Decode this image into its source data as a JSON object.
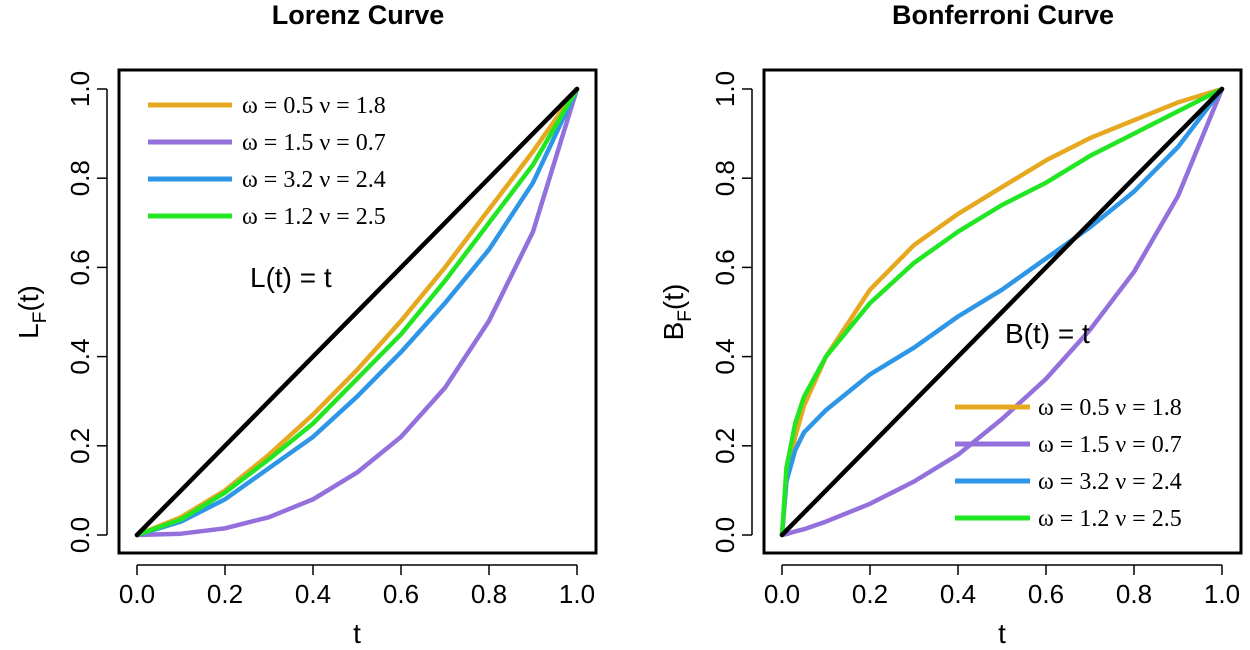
{
  "chart_data": [
    {
      "type": "line",
      "title": "Lorenz Curve",
      "xlabel": "t",
      "ylabel_main": "L",
      "ylabel_sub": "F",
      "ylabel_arg": "(t)",
      "xlim": [
        0,
        1
      ],
      "ylim": [
        0,
        1
      ],
      "xticks": [
        "0.0",
        "0.2",
        "0.4",
        "0.6",
        "0.8",
        "1.0"
      ],
      "yticks": [
        "0.0",
        "0.2",
        "0.4",
        "0.6",
        "0.8",
        "1.0"
      ],
      "grid": false,
      "legend_position": "top-left",
      "annotation": "L(t) = t",
      "x": [
        0,
        0.1,
        0.2,
        0.3,
        0.4,
        0.5,
        0.6,
        0.7,
        0.8,
        0.9,
        1.0
      ],
      "series": [
        {
          "name": "ω = 0.5  ν = 1.8",
          "color": "#E6A81E",
          "values": [
            0,
            0.04,
            0.1,
            0.18,
            0.27,
            0.37,
            0.48,
            0.6,
            0.73,
            0.86,
            1.0
          ]
        },
        {
          "name": "ω = 1.5  ν = 0.7",
          "color": "#9370DB",
          "values": [
            0,
            0.003,
            0.015,
            0.04,
            0.08,
            0.14,
            0.22,
            0.33,
            0.48,
            0.68,
            1.0
          ]
        },
        {
          "name": "ω = 3.2  ν = 2.4",
          "color": "#2E96E6",
          "values": [
            0,
            0.03,
            0.08,
            0.15,
            0.22,
            0.31,
            0.41,
            0.52,
            0.64,
            0.79,
            1.0
          ]
        },
        {
          "name": "ω = 1.2  ν = 2.5",
          "color": "#22E622",
          "values": [
            0,
            0.035,
            0.095,
            0.17,
            0.25,
            0.35,
            0.45,
            0.57,
            0.7,
            0.83,
            1.0
          ]
        },
        {
          "name": "",
          "color": "#000000",
          "values": [
            0,
            0.1,
            0.2,
            0.3,
            0.4,
            0.5,
            0.6,
            0.7,
            0.8,
            0.9,
            1.0
          ]
        }
      ]
    },
    {
      "type": "line",
      "title": "Bonferroni Curve",
      "xlabel": "t",
      "ylabel_main": "B",
      "ylabel_sub": "F",
      "ylabel_arg": "(t)",
      "xlim": [
        0,
        1
      ],
      "ylim": [
        0,
        1
      ],
      "xticks": [
        "0.0",
        "0.2",
        "0.4",
        "0.6",
        "0.8",
        "1.0"
      ],
      "yticks": [
        "0.0",
        "0.2",
        "0.4",
        "0.6",
        "0.8",
        "1.0"
      ],
      "grid": false,
      "legend_position": "bottom-right",
      "annotation": "B(t) = t",
      "x": [
        0,
        0.01,
        0.03,
        0.05,
        0.1,
        0.2,
        0.3,
        0.4,
        0.5,
        0.6,
        0.7,
        0.8,
        0.9,
        1.0
      ],
      "series": [
        {
          "name": "ω = 0.5  ν = 1.8",
          "color": "#E6A81E",
          "values": [
            0,
            0.12,
            0.22,
            0.29,
            0.4,
            0.55,
            0.65,
            0.72,
            0.78,
            0.84,
            0.89,
            0.93,
            0.97,
            1.0
          ]
        },
        {
          "name": "ω = 1.5  ν = 0.7",
          "color": "#9370DB",
          "values": [
            0,
            0.002,
            0.008,
            0.013,
            0.03,
            0.07,
            0.12,
            0.18,
            0.26,
            0.35,
            0.46,
            0.59,
            0.76,
            1.0
          ]
        },
        {
          "name": "ω = 3.2  ν = 2.4",
          "color": "#2E96E6",
          "values": [
            0,
            0.12,
            0.19,
            0.23,
            0.28,
            0.36,
            0.42,
            0.49,
            0.55,
            0.62,
            0.69,
            0.77,
            0.87,
            1.0
          ]
        },
        {
          "name": "ω = 1.2  ν = 2.5",
          "color": "#22E622",
          "values": [
            0,
            0.15,
            0.25,
            0.31,
            0.4,
            0.52,
            0.61,
            0.68,
            0.74,
            0.79,
            0.85,
            0.9,
            0.95,
            1.0
          ]
        },
        {
          "name": "",
          "color": "#000000",
          "values": [
            0,
            0.01,
            0.03,
            0.05,
            0.1,
            0.2,
            0.3,
            0.4,
            0.5,
            0.6,
            0.7,
            0.8,
            0.9,
            1.0
          ]
        }
      ]
    }
  ]
}
